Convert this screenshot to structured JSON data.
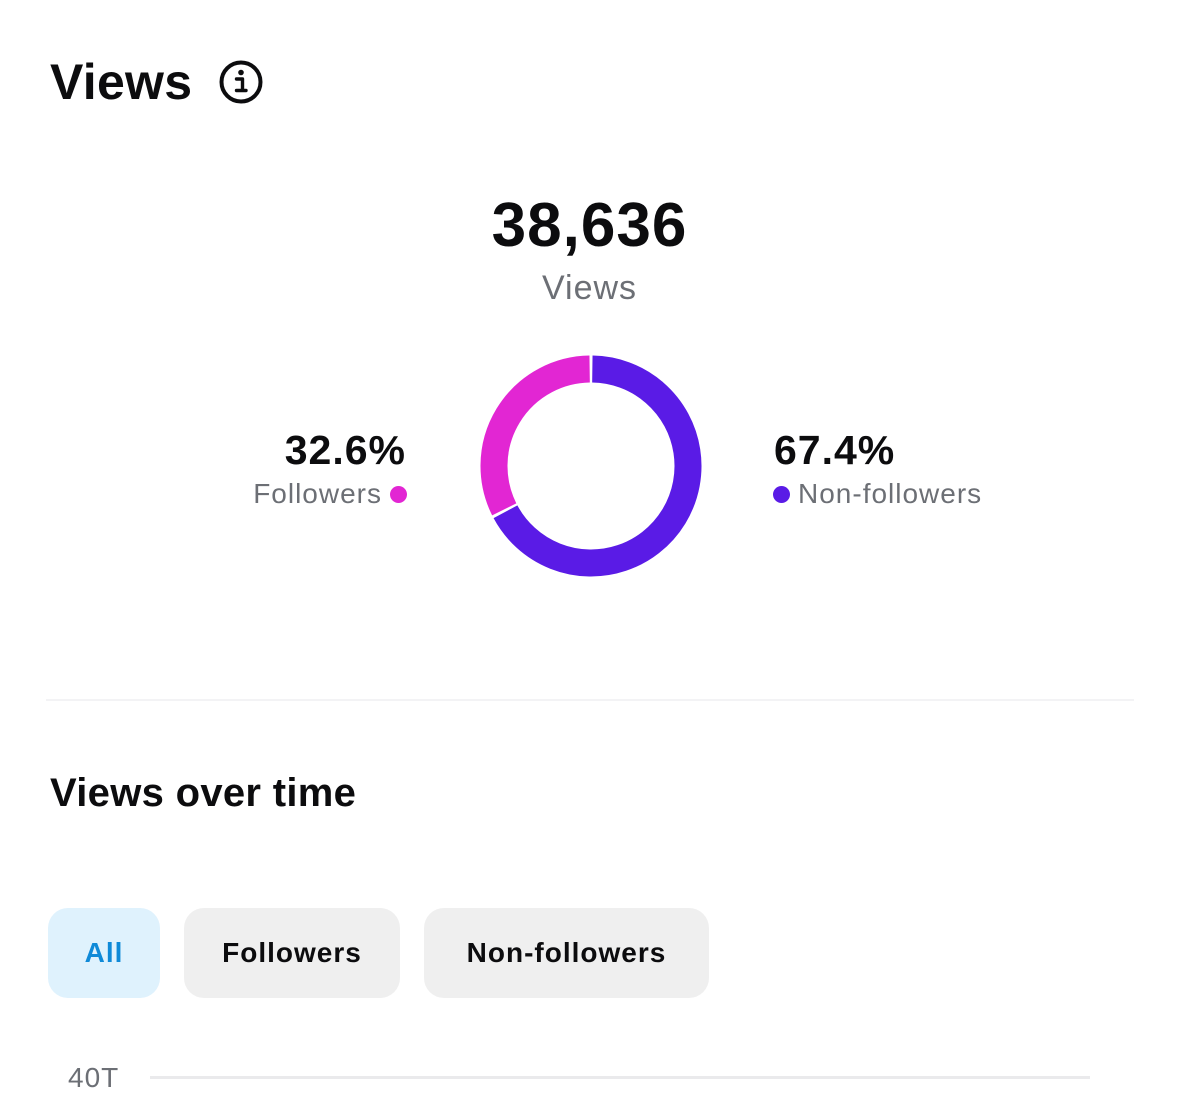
{
  "header": {
    "title": "Views",
    "info_icon": "info-icon"
  },
  "summary": {
    "total": "38,636",
    "total_label": "Views"
  },
  "breakdown": {
    "followers": {
      "percent_text": "32.6%",
      "label": "Followers",
      "color": "#e226d3",
      "value": 32.6
    },
    "non_followers": {
      "percent_text": "67.4%",
      "label": "Non-followers",
      "color": "#5a1be6",
      "value": 67.4
    }
  },
  "over_time": {
    "title": "Views over time",
    "filters": [
      "All",
      "Followers",
      "Non-followers"
    ],
    "selected_filter": "All",
    "y_axis_top_label": "40T"
  },
  "chart_data": {
    "type": "pie",
    "categories": [
      "Followers",
      "Non-followers"
    ],
    "values": [
      32.6,
      67.4
    ],
    "colors": [
      "#e226d3",
      "#5a1be6"
    ],
    "title": "",
    "center_value": "38,636",
    "center_label": "Views"
  }
}
